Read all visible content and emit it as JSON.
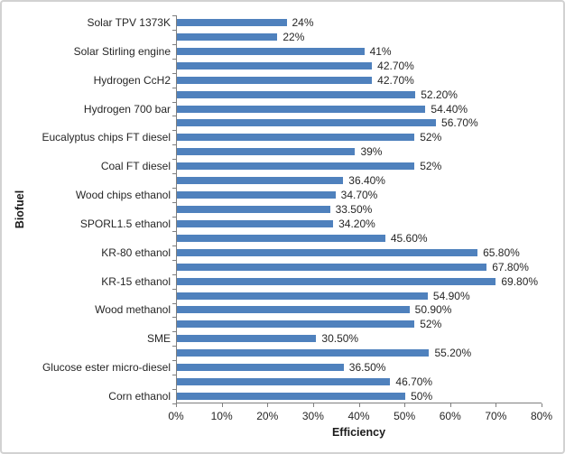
{
  "chart_data": {
    "type": "bar",
    "orientation": "horizontal",
    "title": "",
    "xlabel": "Efficiency",
    "ylabel": "Biofuel",
    "xlim": [
      0,
      80
    ],
    "x_tick_labels": [
      "0%",
      "10%",
      "20%",
      "30%",
      "40%",
      "50%",
      "60%",
      "70%",
      "80%"
    ],
    "grid": false,
    "legend": "none",
    "bar_color": "#4f81bd",
    "axis_color": "#7f7f7f",
    "text_color": "#262626",
    "categories": [
      "Solar TPV 1373K",
      "",
      "Solar Stirling engine",
      "",
      "Hydrogen CcH2",
      "",
      "Hydrogen 700 bar",
      "",
      "Eucalyptus chips FT diesel",
      "",
      "Coal FT diesel",
      "",
      "Wood chips ethanol",
      "",
      "SPORL1.5 ethanol",
      "",
      "KR-80 ethanol",
      "",
      "KR-15 ethanol",
      "",
      "Wood methanol",
      "",
      "SME",
      "",
      "Glucose ester micro-diesel",
      "",
      "Corn ethanol"
    ],
    "values": [
      24,
      22,
      41,
      42.7,
      42.7,
      52.2,
      54.4,
      56.7,
      52,
      39,
      52,
      36.4,
      34.7,
      33.5,
      34.2,
      45.6,
      65.8,
      67.8,
      69.8,
      54.9,
      50.9,
      52,
      30.5,
      55.2,
      36.5,
      46.7,
      50
    ],
    "data_labels": [
      "24%",
      "22%",
      "41%",
      "42.70%",
      "42.70%",
      "52.20%",
      "54.40%",
      "56.70%",
      "52%",
      "39%",
      "52%",
      "36.40%",
      "34.70%",
      "33.50%",
      "34.20%",
      "45.60%",
      "65.80%",
      "67.80%",
      "69.80%",
      "54.90%",
      "50.90%",
      "52%",
      "30.50%",
      "55.20%",
      "36.50%",
      "46.70%",
      "50%"
    ]
  }
}
